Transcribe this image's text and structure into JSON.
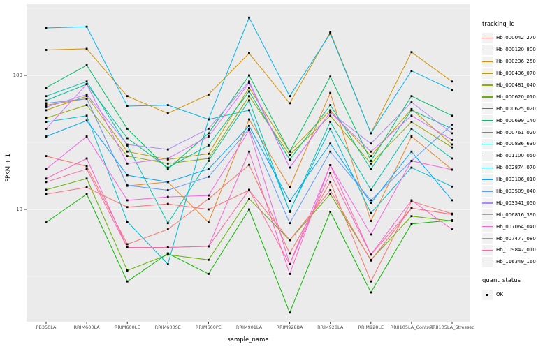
{
  "figure": {
    "background": "#FFFFFF",
    "panel_background": "#EBEBEB",
    "grid_color": "#FFFFFF",
    "tick_color": "#333333",
    "tick_label_color": "#4D4D4D",
    "point_color": "#000000"
  },
  "chart_data": {
    "type": "line",
    "title": "",
    "xlabel": "sample_name",
    "ylabel": "FPKM + 1",
    "y_scale": "log10",
    "ylim": [
      1.5,
      340
    ],
    "grid": true,
    "legend_position": "right",
    "y_ticks": [
      {
        "label": "100",
        "value": 100
      },
      {
        "label": "10",
        "value": 10
      }
    ],
    "y_minor_gridlines": [
      3.162,
      31.62,
      316.2
    ],
    "categories": [
      "PB350LA",
      "RRIM600LA",
      "RRIM600LE",
      "RRIM600SE",
      "RRIM600PE",
      "RRIM901LA",
      "RRIM928BA",
      "RRIM928LA",
      "RRIM928LE",
      "RRII105LA_Control",
      "RRII105LA_Stressed"
    ],
    "legend": {
      "title": "tracking_id"
    },
    "quant_status": {
      "title": "quant_status",
      "items": [
        {
          "label": "OK",
          "marker": "black-square"
        }
      ]
    },
    "series": [
      {
        "name": "Hb_000042_270",
        "color": "#F8766D",
        "values": [
          25,
          21,
          5.5,
          7.1,
          12,
          21.5,
          4.7,
          16,
          2.9,
          11.5,
          9.3
        ]
      },
      {
        "name": "Hb_000120_800",
        "color": "#E88526",
        "values": [
          60,
          67,
          15,
          16,
          8,
          47,
          14.6,
          74,
          8.2,
          35,
          19.8
        ]
      },
      {
        "name": "Hb_000236_250",
        "color": "#D39200",
        "values": [
          155,
          158,
          70,
          52,
          72,
          146,
          62,
          210,
          37,
          149,
          90
        ]
      },
      {
        "name": "Hb_000436_070",
        "color": "#B79F00",
        "values": [
          55,
          70,
          27,
          23.6,
          26,
          81,
          27,
          55,
          25,
          56,
          30.5
        ]
      },
      {
        "name": "Hb_000481_040",
        "color": "#93AA00",
        "values": [
          48,
          60,
          25,
          22,
          24,
          70,
          25.5,
          50,
          22,
          45,
          29
        ]
      },
      {
        "name": "Hb_000620_010",
        "color": "#64B200",
        "values": [
          14,
          17,
          3.5,
          4.6,
          4.2,
          12,
          5.9,
          13,
          4.2,
          8.9,
          8.2
        ]
      },
      {
        "name": "Hb_000625_020",
        "color": "#0CB702",
        "values": [
          8,
          13,
          2.9,
          4.7,
          3.3,
          10,
          1.7,
          9.6,
          2.4,
          7.8,
          8.3
        ]
      },
      {
        "name": "Hb_000699_140",
        "color": "#00BE67",
        "values": [
          81,
          119,
          40,
          20,
          37,
          100,
          27,
          98,
          23,
          70,
          50
        ]
      },
      {
        "name": "Hb_000761_020",
        "color": "#00C08B",
        "values": [
          65,
          86,
          34,
          20.5,
          30,
          76,
          23.5,
          60,
          20,
          55,
          40
        ]
      },
      {
        "name": "Hb_000836_630",
        "color": "#00C0AF",
        "values": [
          70,
          90,
          30,
          7.9,
          23,
          65,
          9.6,
          45,
          14,
          40,
          24
        ]
      },
      {
        "name": "Hb_001100_050",
        "color": "#00BCD8",
        "values": [
          45,
          50,
          8.1,
          3.9,
          47,
          55,
          9.7,
          40,
          9.4,
          20.5,
          14.8
        ]
      },
      {
        "name": "Hb_002874_070",
        "color": "#00B4F0",
        "values": [
          226,
          231,
          59,
          60,
          47,
          270,
          70,
          205,
          37,
          108,
          78
        ]
      },
      {
        "name": "Hb_003106_010",
        "color": "#00A5FF",
        "values": [
          35,
          46,
          18,
          16,
          20,
          42,
          11.5,
          31,
          11.2,
          27,
          11.7
        ]
      },
      {
        "name": "Hb_003509_040",
        "color": "#619CFF",
        "values": [
          62,
          67,
          15.1,
          13.9,
          17.5,
          40,
          7.9,
          27,
          11.7,
          23,
          43
        ]
      },
      {
        "name": "Hb_003541_050",
        "color": "#AE87FF",
        "values": [
          58,
          72,
          30.5,
          28,
          40,
          90,
          20.5,
          53,
          31,
          63,
          37
        ]
      },
      {
        "name": "Hb_006816_390",
        "color": "#DB72FB",
        "values": [
          40,
          86,
          22,
          24,
          35,
          88,
          20.5,
          53,
          27,
          50,
          33
        ]
      },
      {
        "name": "Hb_007064_040",
        "color": "#F564E3",
        "values": [
          20,
          35,
          11.7,
          12.4,
          12.7,
          39,
          3.9,
          21.4,
          6.5,
          23,
          19.8
        ]
      },
      {
        "name": "Hb_007477_080",
        "color": "#FF61CC",
        "values": [
          17,
          24,
          5.2,
          5.2,
          5.3,
          27,
          3.3,
          21.4,
          4.6,
          11.7,
          7.1
        ]
      },
      {
        "name": "Hb_109842_010",
        "color": "#FF67A4",
        "values": [
          16,
          20,
          5.2,
          5.2,
          5.3,
          14,
          3.9,
          18.6,
          4.6,
          10.2,
          9.2
        ]
      },
      {
        "name": "Hb_116349_160",
        "color": "#FC717F",
        "values": [
          13,
          14.6,
          10.4,
          11,
          10,
          13.9,
          5.9,
          13.9,
          4.15,
          10.2,
          9.2
        ]
      }
    ]
  }
}
